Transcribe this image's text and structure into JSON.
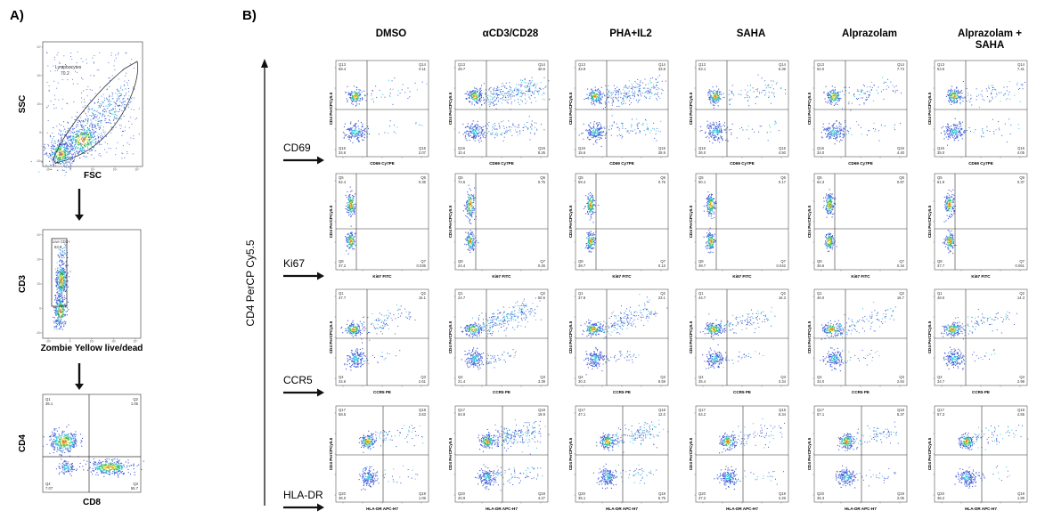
{
  "figure": {
    "panel_a_label": "A)",
    "panel_b_label": "B)",
    "y_axis_label": "CD4 PerCP Cy5.5",
    "columns": [
      "DMSO",
      "αCD3/CD28",
      "PHA+IL2",
      "SAHA",
      "Alprazolam",
      "Alprazolam + SAHA"
    ],
    "columns_display": [
      [
        "DMSO"
      ],
      [
        "αCD3/CD28"
      ],
      [
        "PHA+IL2"
      ],
      [
        "SAHA"
      ],
      [
        "Alprazolam"
      ],
      [
        "Alprazolam +",
        "SAHA"
      ]
    ],
    "rows": [
      "CD69",
      "Ki67",
      "CCR5",
      "HLA-DR"
    ]
  },
  "colors": {
    "dot_blue": "#3f5bd6",
    "dot_cyan": "#2ec4d8",
    "dot_green": "#3ab54a",
    "dot_yellow": "#e8e23a",
    "dot_orange": "#e6822a",
    "gate_line": "#333333"
  },
  "chart_data": [
    {
      "type": "scatter",
      "panel": "A-1",
      "xlabel": "FSC",
      "ylabel": "SSC",
      "gates": [
        {
          "name": "Lymphocytes",
          "percent": "70.2"
        }
      ]
    },
    {
      "type": "scatter",
      "panel": "A-2",
      "xlabel": "Zombie Yellow  live/dead",
      "ylabel": "CD3",
      "gates": [
        {
          "name": "Live CD3+",
          "percent": "63.6"
        }
      ]
    },
    {
      "type": "scatter",
      "panel": "A-3",
      "xlabel": "CD8",
      "ylabel": "CD4",
      "quadrants": {
        "tl": {
          "name": "Q1",
          "value": "36.1"
        },
        "tr": {
          "name": "Q2",
          "value": "1.05"
        },
        "bl": {
          "name": "Q4",
          "value": "7.07"
        },
        "br": {
          "name": "Q3",
          "value": "55.7"
        }
      }
    },
    {
      "type": "scatter",
      "panel": "B",
      "marker": "CD69",
      "xlabel": "CD69 Cy7PE",
      "ylabel": "CD4 PerCPCy5.5",
      "quadrant_names": [
        "Q13",
        "Q14",
        "Q16",
        "Q15"
      ],
      "values": [
        [
          "58.4",
          "0.11",
          "34.6",
          "2.07"
        ],
        [
          "28.7",
          "40.6",
          "10.4",
          "8.26"
        ],
        [
          "33.9",
          "33.8",
          "15.6",
          "28.9"
        ],
        [
          "53.1",
          "6.36",
          "36.0",
          "4.50"
        ],
        [
          "54.0",
          "7.74",
          "34.0",
          "4.40"
        ],
        [
          "53.5",
          "7.41",
          "35.0",
          "4.05"
        ]
      ]
    },
    {
      "type": "scatter",
      "panel": "B",
      "marker": "Ki67",
      "xlabel": "Ki67 FITC",
      "ylabel": "CD4 PerCPCy5.5",
      "quadrant_names": [
        "Q5",
        "Q6",
        "Q8",
        "Q7"
      ],
      "values": [
        [
          "62.4",
          "0.36",
          "37.2",
          "0.036"
        ],
        [
          "74.5",
          "0.75",
          "24.4",
          "0.26"
        ],
        [
          "59.4",
          "0.76",
          "39.7",
          "0.13"
        ],
        [
          "60.1",
          "0.17",
          "39.7",
          "0.042"
        ],
        [
          "62.3",
          "0.87",
          "36.6",
          "0.16"
        ],
        [
          "61.9",
          "0.37",
          "37.7",
          "0.061"
        ]
      ]
    },
    {
      "type": "scatter",
      "panel": "B",
      "marker": "CCR5",
      "xlabel": "CCR5 PE",
      "ylabel": "CD4 PerCPCy5.5",
      "quadrant_names": [
        "Q1",
        "Q2",
        "Q4",
        "Q3"
      ],
      "values": [
        [
          "47.7",
          "15.1",
          "34.6",
          "2.61"
        ],
        [
          "24.7",
          "50.5",
          "21.4",
          "3.38"
        ],
        [
          "37.8",
          "23.1",
          "30.3",
          "8.59"
        ],
        [
          "44.7",
          "16.3",
          "35.4",
          "3.34"
        ],
        [
          "46.0",
          "16.7",
          "34.0",
          "2.84"
        ],
        [
          "48.0",
          "14.3",
          "34.7",
          "2.98"
        ]
      ]
    },
    {
      "type": "scatter",
      "panel": "B",
      "marker": "HLA-DR",
      "xlabel": "HLA-DR APC-H7",
      "ylabel": "CD4 PerCPCy5.5",
      "quadrant_names": [
        "Q17",
        "Q18",
        "Q20",
        "Q19"
      ],
      "values": [
        [
          "58.5",
          "3.63",
          "36.0",
          "1.06"
        ],
        [
          "54.9",
          "19.9",
          "20.9",
          "4.27"
        ],
        [
          "47.1",
          "12.0",
          "35.1",
          "5.75"
        ],
        [
          "54.2",
          "6.34",
          "37.2",
          "2.26"
        ],
        [
          "57.1",
          "5.37",
          "35.3",
          "2.05"
        ],
        [
          "57.3",
          "4.55",
          "36.2",
          "1.99"
        ]
      ]
    }
  ]
}
